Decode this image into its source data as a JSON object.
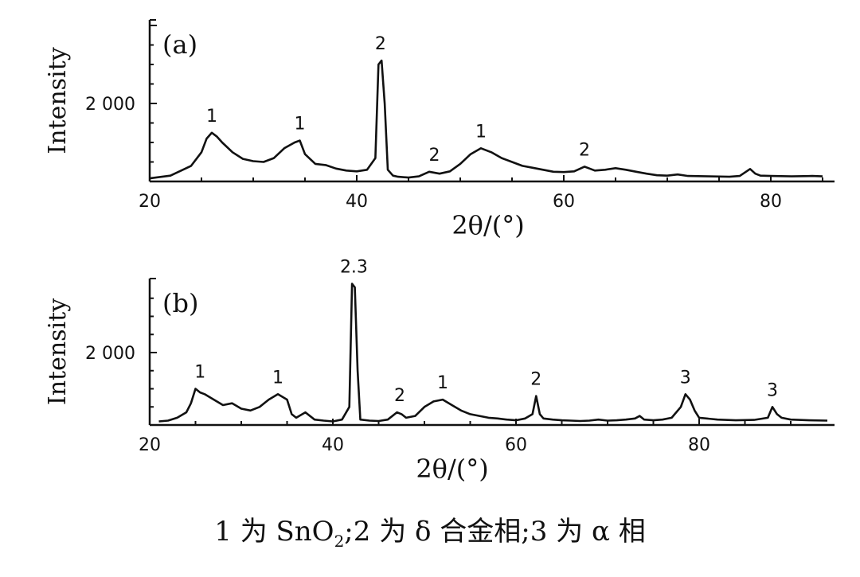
{
  "chart_data": [
    {
      "type": "line",
      "panel_label": "(a)",
      "xlabel": "2θ/(°)",
      "ylabel": "Intensity",
      "xlim": [
        20,
        86
      ],
      "xticks": [
        "20",
        "40",
        "60",
        "80"
      ],
      "ytick_labels": [
        "2 000"
      ],
      "series": [
        {
          "x": [
            20,
            22,
            24,
            25,
            25.5,
            26,
            26.5,
            27,
            28,
            29,
            30,
            31,
            32,
            33,
            34,
            34.5,
            35,
            36,
            37,
            38,
            39,
            40,
            41,
            41.8,
            42.1,
            42.4,
            42.7,
            43,
            43.5,
            44,
            45,
            46,
            47,
            48,
            49,
            50,
            51,
            52,
            53,
            54,
            55,
            56,
            57,
            58,
            59,
            60,
            61,
            62,
            62.5,
            63,
            64,
            65,
            66,
            67,
            68,
            69,
            70,
            71,
            72,
            74,
            76,
            77,
            78,
            78.5,
            79,
            80,
            82,
            84,
            85
          ],
          "y": [
            80,
            150,
            400,
            750,
            1100,
            1250,
            1150,
            1000,
            750,
            580,
            520,
            500,
            600,
            850,
            1000,
            1050,
            700,
            450,
            420,
            330,
            280,
            260,
            300,
            600,
            3000,
            3100,
            2000,
            300,
            150,
            120,
            100,
            130,
            250,
            200,
            260,
            450,
            700,
            850,
            750,
            600,
            500,
            400,
            350,
            300,
            250,
            240,
            260,
            380,
            330,
            280,
            300,
            340,
            300,
            250,
            200,
            160,
            150,
            180,
            140,
            130,
            120,
            140,
            320,
            200,
            150,
            140,
            130,
            140,
            130
          ]
        }
      ],
      "annotations": [
        {
          "text": "1",
          "x": 26,
          "y": 1250
        },
        {
          "text": "1",
          "x": 34.5,
          "y": 1050
        },
        {
          "text": "2",
          "x": 42.3,
          "y": 3100
        },
        {
          "text": "2",
          "x": 47.5,
          "y": 250
        },
        {
          "text": "1",
          "x": 52,
          "y": 850
        },
        {
          "text": "2",
          "x": 62,
          "y": 380
        }
      ]
    },
    {
      "type": "line",
      "panel_label": "(b)",
      "xlabel": "2θ/(°)",
      "ylabel": "Intensity",
      "xlim": [
        20,
        94
      ],
      "xticks": [
        "20",
        "40",
        "60",
        "80"
      ],
      "ytick_labels": [
        "2 000"
      ],
      "series": [
        {
          "x": [
            21,
            22,
            23,
            24,
            24.5,
            25,
            25.5,
            26,
            27,
            28,
            29,
            30,
            31,
            32,
            33,
            34,
            35,
            35.5,
            36,
            37,
            38,
            39,
            40,
            41,
            41.8,
            42.1,
            42.4,
            42.7,
            43,
            44,
            45,
            46,
            47,
            47.5,
            48,
            49,
            50,
            51,
            52,
            53,
            54,
            55,
            56,
            57,
            58,
            59,
            60,
            61,
            61.8,
            62.2,
            62.6,
            63,
            64,
            65,
            66,
            67,
            68,
            69,
            70,
            71,
            72,
            73,
            73.5,
            74,
            75,
            76,
            77,
            78,
            78.5,
            79,
            79.5,
            80,
            82,
            84,
            86,
            87.5,
            88,
            88.5,
            89,
            90,
            92,
            94
          ],
          "y": [
            100,
            120,
            200,
            350,
            600,
            1000,
            900,
            850,
            700,
            550,
            600,
            450,
            400,
            500,
            700,
            850,
            700,
            300,
            200,
            350,
            150,
            120,
            100,
            150,
            500,
            3900,
            3800,
            1500,
            150,
            120,
            110,
            150,
            350,
            300,
            200,
            250,
            500,
            650,
            700,
            550,
            400,
            300,
            250,
            200,
            180,
            150,
            130,
            180,
            300,
            800,
            300,
            180,
            150,
            130,
            120,
            110,
            120,
            150,
            120,
            130,
            150,
            180,
            250,
            150,
            130,
            150,
            200,
            500,
            850,
            700,
            400,
            200,
            150,
            130,
            140,
            200,
            500,
            300,
            200,
            150,
            130,
            120
          ]
        }
      ],
      "annotations": [
        {
          "text": "1",
          "x": 25.5,
          "y": 1000
        },
        {
          "text": "1",
          "x": 34,
          "y": 850
        },
        {
          "text": "2.3",
          "x": 42.3,
          "y": 3900
        },
        {
          "text": "2",
          "x": 47.3,
          "y": 350
        },
        {
          "text": "1",
          "x": 52,
          "y": 700
        },
        {
          "text": "2",
          "x": 62.2,
          "y": 800
        },
        {
          "text": "3",
          "x": 78.5,
          "y": 850
        },
        {
          "text": "3",
          "x": 88,
          "y": 500
        }
      ]
    }
  ],
  "caption": {
    "part1": "1 为 SnO",
    "sub": "2",
    "part2": ";2 为 δ 合金相;3 为 α 相"
  }
}
